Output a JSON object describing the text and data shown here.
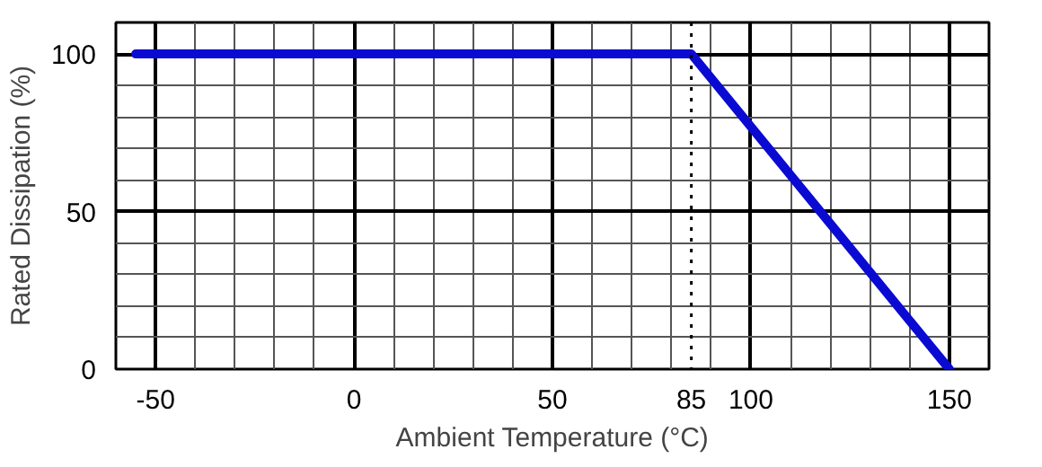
{
  "chart_data": {
    "type": "line",
    "xlabel": "Ambient Temperature (°C)",
    "ylabel": "Rated Dissipation (%)",
    "x": [
      -55,
      85,
      150
    ],
    "series": [
      {
        "color": "#0a0ad2",
        "values": [
          100,
          100,
          0
        ]
      }
    ],
    "xlim": [
      -60,
      160
    ],
    "ylim": [
      0,
      110
    ],
    "xticks": [
      -50,
      0,
      50,
      85,
      100,
      150
    ],
    "yticks": [
      0,
      50,
      100
    ],
    "ref_lines": [
      {
        "axis": "x",
        "value": 85,
        "line_style": "dotted",
        "color": "#000000"
      }
    ],
    "grid": true,
    "line_style": "solid",
    "marker": "none"
  }
}
